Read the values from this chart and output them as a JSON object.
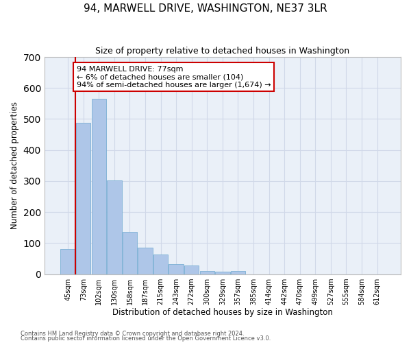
{
  "title": "94, MARWELL DRIVE, WASHINGTON, NE37 3LR",
  "subtitle": "Size of property relative to detached houses in Washington",
  "xlabel": "Distribution of detached houses by size in Washington",
  "ylabel": "Number of detached properties",
  "footer_line1": "Contains HM Land Registry data © Crown copyright and database right 2024.",
  "footer_line2": "Contains public sector information licensed under the Open Government Licence v3.0.",
  "bar_labels": [
    "45sqm",
    "73sqm",
    "102sqm",
    "130sqm",
    "158sqm",
    "187sqm",
    "215sqm",
    "243sqm",
    "272sqm",
    "300sqm",
    "329sqm",
    "357sqm",
    "385sqm",
    "414sqm",
    "442sqm",
    "470sqm",
    "499sqm",
    "527sqm",
    "555sqm",
    "584sqm",
    "612sqm"
  ],
  "bar_values": [
    80,
    487,
    565,
    303,
    137,
    85,
    63,
    32,
    27,
    10,
    7,
    10,
    0,
    0,
    0,
    0,
    0,
    0,
    0,
    0,
    0
  ],
  "bar_color": "#aec6e8",
  "bar_edge_color": "#7aafd4",
  "vline_color": "#cc0000",
  "annotation_title": "94 MARWELL DRIVE: 77sqm",
  "annotation_line1": "← 6% of detached houses are smaller (104)",
  "annotation_line2": "94% of semi-detached houses are larger (1,674) →",
  "annotation_box_color": "#ffffff",
  "annotation_box_edge_color": "#cc0000",
  "ylim": [
    0,
    700
  ],
  "yticks": [
    0,
    100,
    200,
    300,
    400,
    500,
    600,
    700
  ],
  "grid_color": "#d0d8e8",
  "bg_color": "#eaf0f8"
}
